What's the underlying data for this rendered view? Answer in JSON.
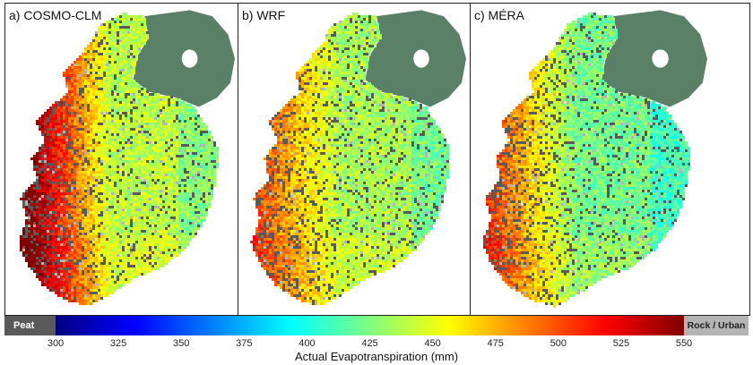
{
  "panels": [
    {
      "label": "a) COSMO-CLM",
      "model": "COSMO-CLM",
      "west_bias": 1.0,
      "offset": 0.04
    },
    {
      "label": "b) WRF",
      "model": "WRF",
      "west_bias": 0.55,
      "offset": 0.02
    },
    {
      "label": "c) MÉRA",
      "model": "MÉRA",
      "west_bias": 0.7,
      "offset": -0.03
    }
  ],
  "colorbar": {
    "title": "Actual Evapotranspiration (mm)",
    "min": 300,
    "max": 550,
    "ticks": [
      "300",
      "325",
      "350",
      "375",
      "400",
      "425",
      "450",
      "475",
      "500",
      "525",
      "550"
    ],
    "colors": [
      "#00007f",
      "#0000ff",
      "#007fff",
      "#00ffff",
      "#7fff7f",
      "#ffff00",
      "#ff7f00",
      "#ff0000",
      "#7f0000"
    ],
    "peat_label": "Peat",
    "peat_color": "#5a5a5a",
    "rock_label": "Rock / Urban",
    "rock_color": "#b4b4b4"
  },
  "northern_ireland_color": "#5b8068"
}
